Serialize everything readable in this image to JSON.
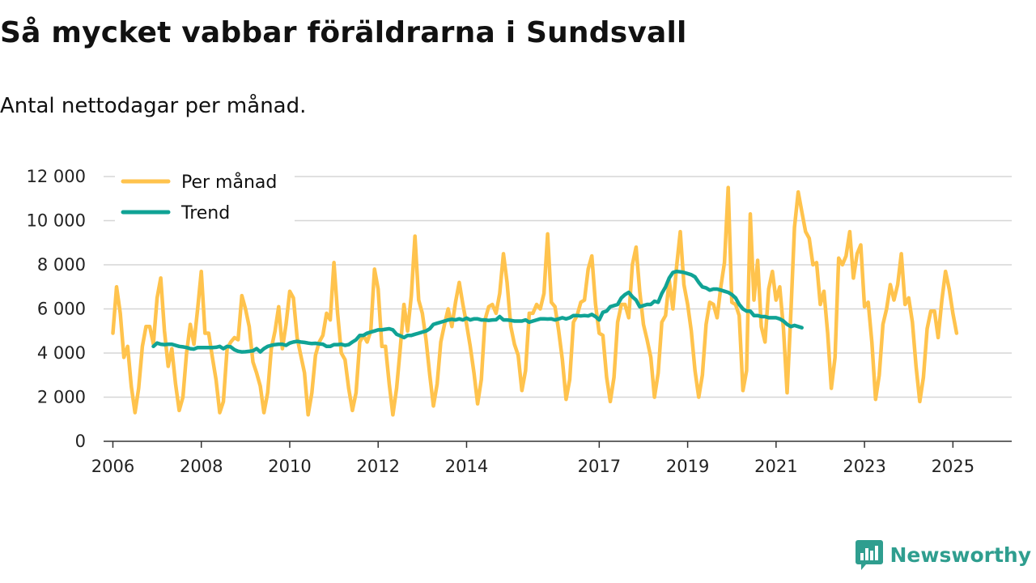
{
  "title": "Så mycket vabbar föräldrarna i Sundsvall",
  "subtitle": "Antal nettodagar per månad.",
  "brand": {
    "name": "Newsworthy",
    "icon": "newsworthy-logo-icon",
    "color": "#2f9e8f"
  },
  "chart_data": {
    "type": "line",
    "title": "Så mycket vabbar föräldrarna i Sundsvall",
    "subtitle": "Antal nettodagar per månad.",
    "xlabel": "",
    "ylabel": "",
    "ylim": [
      0,
      12000
    ],
    "xlim": [
      2005.79,
      2026.33
    ],
    "yticks": [
      0,
      2000,
      4000,
      6000,
      8000,
      10000,
      12000
    ],
    "ytick_labels": [
      "0",
      "2 000",
      "4 000",
      "6 000",
      "8 000",
      "10 000",
      "12 000"
    ],
    "xticks": [
      2006,
      2008,
      2010,
      2012,
      2014,
      2017,
      2019,
      2021,
      2023,
      2025
    ],
    "xtick_labels": [
      "2006",
      "2008",
      "2010",
      "2012",
      "2014",
      "2017",
      "2019",
      "2021",
      "2023",
      "2025"
    ],
    "grid": true,
    "legend": {
      "position": "top-left",
      "entries": [
        "Per månad",
        "Trend"
      ]
    },
    "series": [
      {
        "name": "Per månad",
        "color": "#ffc34d",
        "start": [
          2006,
          1
        ],
        "values": [
          4900,
          7000,
          5800,
          3800,
          4300,
          2500,
          1300,
          2400,
          4300,
          5200,
          5200,
          4400,
          6500,
          7400,
          5000,
          3400,
          4200,
          2600,
          1400,
          2000,
          4000,
          5300,
          4400,
          6000,
          7700,
          4900,
          4900,
          3800,
          2800,
          1300,
          1800,
          4200,
          4500,
          4700,
          4600,
          6600,
          6000,
          5200,
          3600,
          3100,
          2500,
          1300,
          2200,
          4200,
          5000,
          6100,
          4200,
          5300,
          6800,
          6500,
          4700,
          3900,
          3100,
          1200,
          2200,
          3900,
          4500,
          4800,
          5800,
          5500,
          8100,
          5800,
          4000,
          3700,
          2400,
          1400,
          2200,
          4500,
          4800,
          4500,
          5000,
          7800,
          6900,
          4300,
          4300,
          2600,
          1200,
          2400,
          4200,
          6200,
          5000,
          6600,
          9300,
          6400,
          5800,
          4600,
          3000,
          1600,
          2600,
          4500,
          5300,
          6000,
          5200,
          6300,
          7200,
          6200,
          5300,
          4300,
          3100,
          1700,
          2800,
          5500,
          6100,
          6200,
          5800,
          6700,
          8500,
          7200,
          5200,
          4400,
          3900,
          2300,
          3200,
          5800,
          5800,
          6200,
          6000,
          6700,
          9400,
          6300,
          6100,
          5000,
          3700,
          1900,
          2800,
          5400,
          5700,
          6300,
          6400,
          7800,
          8400,
          6200,
          4900,
          4800,
          2900,
          1800,
          2900,
          5400,
          6200,
          6200,
          5600,
          8000,
          8800,
          6800,
          5300,
          4600,
          3800,
          2000,
          3100,
          5400,
          5700,
          7300,
          6000,
          7900,
          9500,
          7100,
          6200,
          5000,
          3200,
          2000,
          3000,
          5300,
          6300,
          6200,
          5600,
          7000,
          8100,
          11500,
          6300,
          6200,
          5700,
          2300,
          3200,
          10300,
          6400,
          8200,
          5200,
          4500,
          6900,
          7700,
          6400,
          7000,
          5100,
          2200,
          5800,
          9700,
          11300,
          10400,
          9500,
          9200,
          8000,
          8100,
          6200,
          6800,
          4900,
          2400,
          3800,
          8300,
          8000,
          8400,
          9500,
          7400,
          8500,
          8900,
          6100,
          6300,
          4500,
          1900,
          3000,
          5300,
          6000,
          7100,
          6400,
          7100,
          8500,
          6200,
          6500,
          5400,
          3400,
          1800,
          2900,
          5100,
          5900,
          5900,
          4700,
          6400,
          7700,
          6900,
          5800,
          4900
        ]
      },
      {
        "name": "Trend",
        "color": "#10a395",
        "start": [
          2006,
          12
        ],
        "values": [
          4300,
          4450,
          4400,
          4380,
          4400,
          4400,
          4350,
          4300,
          4280,
          4250,
          4200,
          4180,
          4250,
          4250,
          4250,
          4250,
          4250,
          4260,
          4300,
          4200,
          4300,
          4280,
          4150,
          4080,
          4050,
          4060,
          4080,
          4100,
          4200,
          4050,
          4200,
          4300,
          4350,
          4380,
          4400,
          4400,
          4350,
          4450,
          4500,
          4530,
          4500,
          4480,
          4450,
          4430,
          4440,
          4420,
          4400,
          4300,
          4300,
          4380,
          4380,
          4400,
          4350,
          4380,
          4500,
          4600,
          4800,
          4800,
          4900,
          4950,
          5000,
          5050,
          5050,
          5080,
          5100,
          5050,
          4850,
          4780,
          4700,
          4800,
          4800,
          4850,
          4900,
          4950,
          5000,
          5100,
          5300,
          5350,
          5400,
          5450,
          5500,
          5530,
          5500,
          5550,
          5500,
          5580,
          5500,
          5550,
          5550,
          5500,
          5500,
          5480,
          5500,
          5510,
          5650,
          5500,
          5500,
          5480,
          5450,
          5450,
          5450,
          5500,
          5400,
          5450,
          5500,
          5550,
          5550,
          5540,
          5550,
          5500,
          5550,
          5600,
          5550,
          5600,
          5700,
          5700,
          5680,
          5700,
          5680,
          5750,
          5650,
          5500,
          5850,
          5900,
          6100,
          6150,
          6200,
          6500,
          6650,
          6750,
          6550,
          6400,
          6100,
          6150,
          6200,
          6200,
          6350,
          6300,
          6700,
          7000,
          7400,
          7650,
          7700,
          7680,
          7650,
          7600,
          7550,
          7450,
          7200,
          7000,
          6950,
          6850,
          6900,
          6900,
          6850,
          6800,
          6750,
          6650,
          6500,
          6200,
          6000,
          5900,
          5900,
          5700,
          5700,
          5650,
          5650,
          5600,
          5600,
          5600,
          5550,
          5450,
          5300,
          5200,
          5250,
          5200,
          5150
        ]
      }
    ]
  }
}
